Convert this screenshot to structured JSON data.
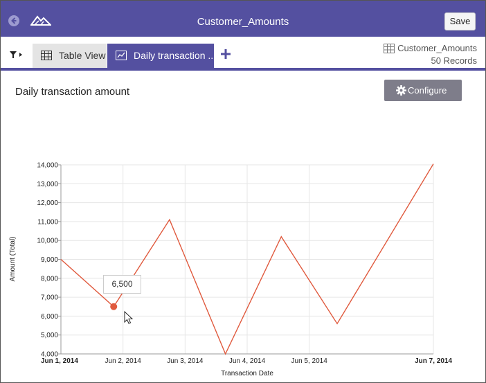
{
  "header": {
    "title": "Customer_Amounts",
    "save_label": "Save",
    "color": "#5450a0"
  },
  "tabs": [
    {
      "label": "Table View",
      "icon": "table-icon",
      "active": false
    },
    {
      "label": "Daily transaction ...",
      "icon": "line-chart-icon",
      "active": true
    }
  ],
  "datasource": {
    "name": "Customer_Amounts",
    "records": "50 Records"
  },
  "panel": {
    "title": "Daily transaction amount",
    "configure_label": "Configure"
  },
  "tooltip": {
    "value": "6,500"
  },
  "chart_data": {
    "type": "line",
    "xlabel": "Transaction Date",
    "ylabel": "Amount (Total)",
    "ylim": [
      4000,
      14000
    ],
    "y_ticks": [
      4000,
      5000,
      6000,
      7000,
      8000,
      9000,
      10000,
      11000,
      12000,
      13000,
      14000
    ],
    "y_tick_labels": [
      "4,000",
      "5,000",
      "6,000",
      "7,000",
      "8,000",
      "9,000",
      "10,000",
      "11,000",
      "12,000",
      "13,000",
      "14,000"
    ],
    "x_range": [
      1,
      7
    ],
    "x_ticks": [
      1,
      2,
      3,
      4,
      5,
      7
    ],
    "x_tick_labels": [
      "Jun 1, 2014",
      "Jun 2, 2014",
      "Jun 3, 2014",
      "Jun 4, 2014",
      "Jun 5, 2014",
      "Jun 7, 2014"
    ],
    "x_tick_bold": [
      true,
      false,
      false,
      false,
      false,
      true
    ],
    "series": [
      {
        "color": "#e05a3e",
        "x": [
          1,
          1.85,
          2.75,
          3.65,
          4.55,
          5.45,
          7
        ],
        "y": [
          9000,
          6500,
          11100,
          4000,
          10200,
          5600,
          14050
        ]
      }
    ],
    "highlight_index": 1,
    "grid": true
  }
}
